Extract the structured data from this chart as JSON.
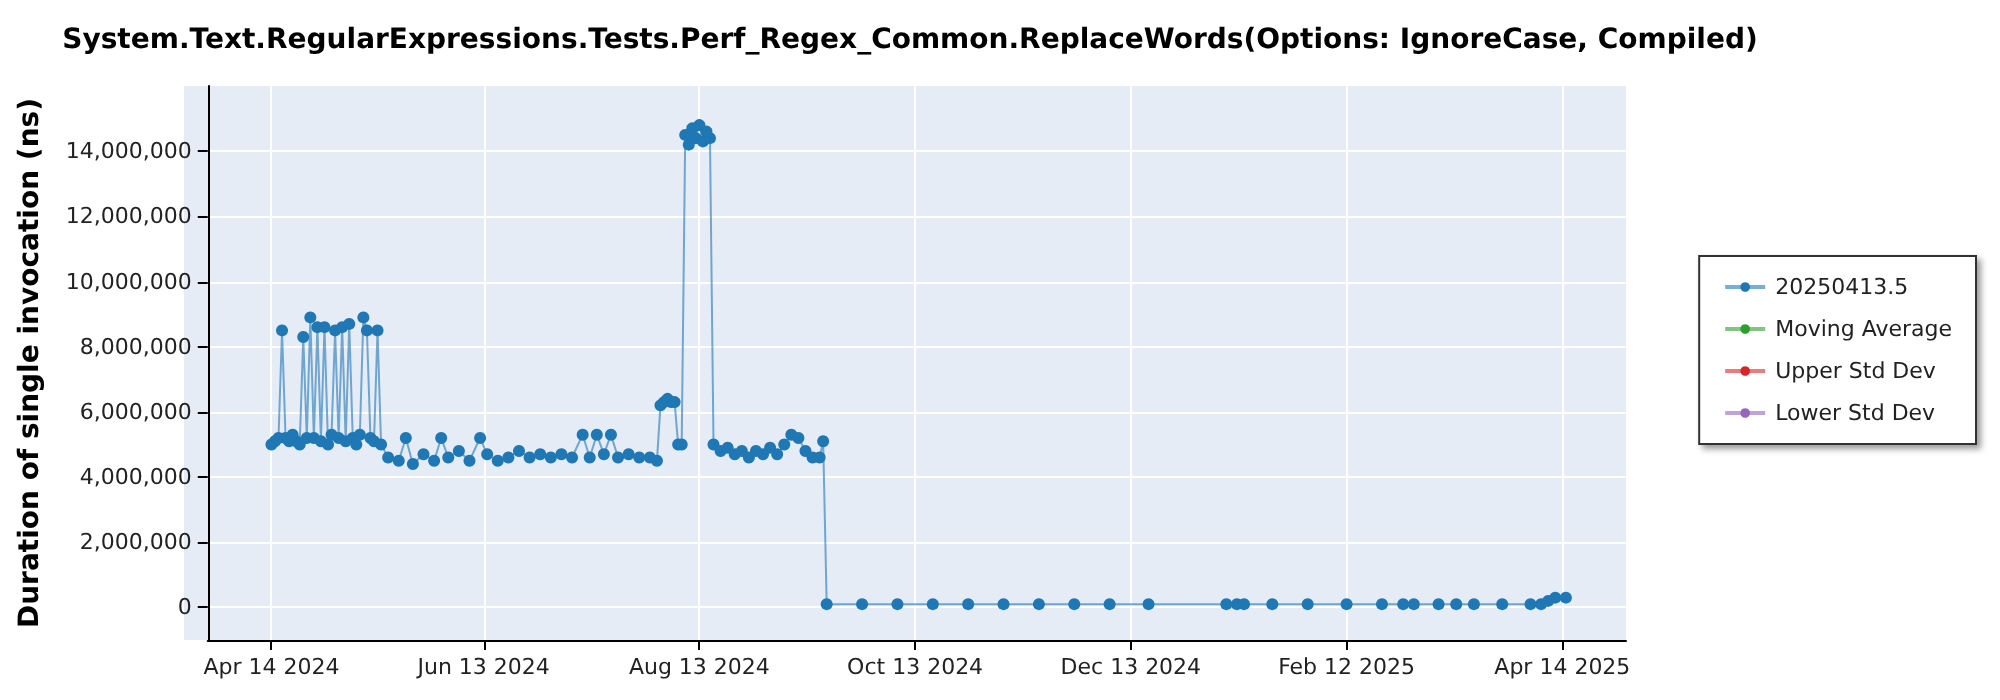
{
  "chart_data": {
    "type": "line",
    "title": "System.Text.RegularExpressions.Tests.Perf_Regex_Common.ReplaceWords(Options: IgnoreCase, Compiled)",
    "ylabel": "Duration of single invocation (ns)",
    "xlim": [
      "2024-03-27",
      "2025-05-02"
    ],
    "xticks": [
      {
        "value": "2024-04-14",
        "label": "Apr 14 2024"
      },
      {
        "value": "2024-06-13",
        "label": "Jun 13 2024"
      },
      {
        "value": "2024-08-13",
        "label": "Aug 13 2024"
      },
      {
        "value": "2024-10-13",
        "label": "Oct 13 2024"
      },
      {
        "value": "2024-12-13",
        "label": "Dec 13 2024"
      },
      {
        "value": "2025-02-12",
        "label": "Feb 12 2025"
      },
      {
        "value": "2025-04-14",
        "label": "Apr 14 2025"
      }
    ],
    "ylim": [
      -1000000,
      16000000
    ],
    "yticks": [
      {
        "value": 0,
        "label": "0"
      },
      {
        "value": 2000000,
        "label": "2,000,000"
      },
      {
        "value": 4000000,
        "label": "4,000,000"
      },
      {
        "value": 6000000,
        "label": "6,000,000"
      },
      {
        "value": 8000000,
        "label": "8,000,000"
      },
      {
        "value": 10000000,
        "label": "10,000,000"
      },
      {
        "value": 12000000,
        "label": "12,000,000"
      },
      {
        "value": 14000000,
        "label": "14,000,000"
      }
    ],
    "grid": true,
    "legend": "right",
    "marker": "circle",
    "line_style": "solid",
    "series": [
      {
        "name": "20250413.5",
        "color": "#1f77b4",
        "x": [
          "2024-04-14",
          "2024-04-15",
          "2024-04-16",
          "2024-04-17",
          "2024-04-18",
          "2024-04-19",
          "2024-04-20",
          "2024-04-21",
          "2024-04-22",
          "2024-04-23",
          "2024-04-24",
          "2024-04-25",
          "2024-04-26",
          "2024-04-27",
          "2024-04-28",
          "2024-04-29",
          "2024-04-30",
          "2024-05-01",
          "2024-05-02",
          "2024-05-03",
          "2024-05-04",
          "2024-05-05",
          "2024-05-06",
          "2024-05-07",
          "2024-05-08",
          "2024-05-09",
          "2024-05-10",
          "2024-05-11",
          "2024-05-12",
          "2024-05-13",
          "2024-05-14",
          "2024-05-15",
          "2024-05-17",
          "2024-05-20",
          "2024-05-22",
          "2024-05-24",
          "2024-05-27",
          "2024-05-30",
          "2024-06-01",
          "2024-06-03",
          "2024-06-06",
          "2024-06-09",
          "2024-06-12",
          "2024-06-14",
          "2024-06-17",
          "2024-06-20",
          "2024-06-23",
          "2024-06-26",
          "2024-06-29",
          "2024-07-02",
          "2024-07-05",
          "2024-07-08",
          "2024-07-11",
          "2024-07-13",
          "2024-07-15",
          "2024-07-17",
          "2024-07-19",
          "2024-07-21",
          "2024-07-24",
          "2024-07-27",
          "2024-07-30",
          "2024-08-01",
          "2024-08-02",
          "2024-08-03",
          "2024-08-04",
          "2024-08-05",
          "2024-08-06",
          "2024-08-07",
          "2024-08-08",
          "2024-08-09",
          "2024-08-10",
          "2024-08-11",
          "2024-08-12",
          "2024-08-13",
          "2024-08-14",
          "2024-08-15",
          "2024-08-16",
          "2024-08-17",
          "2024-08-19",
          "2024-08-21",
          "2024-08-23",
          "2024-08-25",
          "2024-08-27",
          "2024-08-29",
          "2024-08-31",
          "2024-09-02",
          "2024-09-04",
          "2024-09-06",
          "2024-09-08",
          "2024-09-10",
          "2024-09-12",
          "2024-09-14",
          "2024-09-16",
          "2024-09-17",
          "2024-09-18",
          "2024-09-28",
          "2024-10-08",
          "2024-10-18",
          "2024-10-28",
          "2024-11-07",
          "2024-11-17",
          "2024-11-27",
          "2024-12-07",
          "2024-12-18",
          "2025-01-09",
          "2025-01-12",
          "2025-01-14",
          "2025-01-22",
          "2025-02-01",
          "2025-02-12",
          "2025-02-22",
          "2025-02-28",
          "2025-03-03",
          "2025-03-10",
          "2025-03-15",
          "2025-03-20",
          "2025-03-28",
          "2025-04-05",
          "2025-04-08",
          "2025-04-10",
          "2025-04-12",
          "2025-04-15"
        ],
        "values": [
          5000000,
          5100000,
          5200000,
          8500000,
          5200000,
          5100000,
          5300000,
          5100000,
          5000000,
          8300000,
          5200000,
          8900000,
          5200000,
          8600000,
          5100000,
          8600000,
          5000000,
          5300000,
          8500000,
          5200000,
          8600000,
          5100000,
          8700000,
          5200000,
          5000000,
          5300000,
          8900000,
          8500000,
          5200000,
          5100000,
          8500000,
          5000000,
          4600000,
          4500000,
          5200000,
          4400000,
          4700000,
          4500000,
          5200000,
          4600000,
          4800000,
          4500000,
          5200000,
          4700000,
          4500000,
          4600000,
          4800000,
          4600000,
          4700000,
          4600000,
          4700000,
          4600000,
          5300000,
          4600000,
          5300000,
          4700000,
          5300000,
          4600000,
          4700000,
          4600000,
          4600000,
          4500000,
          6200000,
          6300000,
          6400000,
          6300000,
          6300000,
          5000000,
          5000000,
          14500000,
          14200000,
          14700000,
          14400000,
          14800000,
          14300000,
          14600000,
          14400000,
          5000000,
          4800000,
          4900000,
          4700000,
          4800000,
          4600000,
          4800000,
          4700000,
          4900000,
          4700000,
          5000000,
          5300000,
          5200000,
          4800000,
          4600000,
          4600000,
          5100000,
          100000,
          100000,
          100000,
          100000,
          100000,
          100000,
          100000,
          100000,
          100000,
          100000,
          100000,
          100000,
          100000,
          100000,
          100000,
          100000,
          100000,
          100000,
          100000,
          100000,
          100000,
          100000,
          100000,
          100000,
          100000,
          200000,
          300000,
          300000
        ]
      },
      {
        "name": "Moving Average",
        "color": "#2ca02c"
      },
      {
        "name": "Upper Std Dev",
        "color": "#d62728"
      },
      {
        "name": "Lower Std Dev",
        "color": "#9467bd"
      }
    ]
  }
}
